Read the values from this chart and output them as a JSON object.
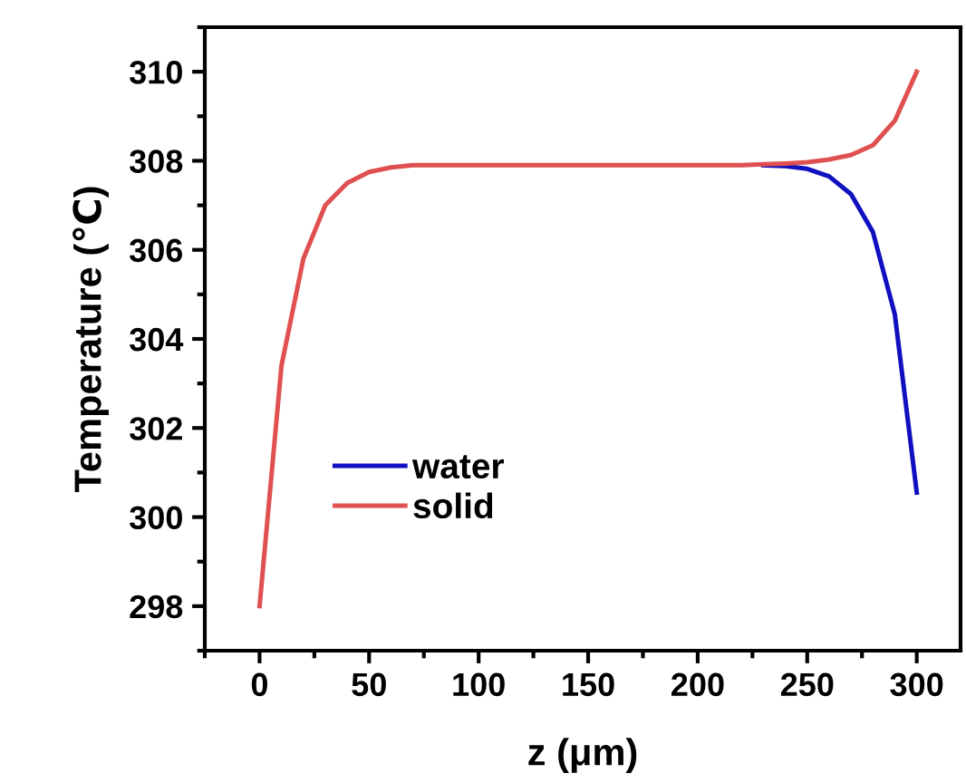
{
  "chart_data": {
    "type": "line",
    "xlabel": "z (μm)",
    "ylabel": "Temperature (℃)",
    "x": [
      0,
      10,
      20,
      30,
      40,
      50,
      60,
      70,
      80,
      90,
      100,
      110,
      120,
      130,
      140,
      150,
      160,
      170,
      180,
      190,
      200,
      210,
      220,
      230,
      240,
      250,
      260,
      270,
      280,
      290,
      300
    ],
    "series": [
      {
        "name": "water",
        "color": "#1010c0",
        "values": [
          null,
          null,
          null,
          null,
          null,
          null,
          null,
          null,
          null,
          null,
          null,
          null,
          null,
          null,
          null,
          null,
          null,
          null,
          null,
          null,
          null,
          null,
          null,
          307.9,
          307.88,
          307.82,
          307.65,
          307.25,
          306.4,
          304.55,
          300.55
        ]
      },
      {
        "name": "solid",
        "color": "#e05050",
        "values": [
          298.0,
          303.4,
          305.8,
          307.0,
          307.5,
          307.75,
          307.85,
          307.9,
          307.9,
          307.9,
          307.9,
          307.9,
          307.9,
          307.9,
          307.9,
          307.9,
          307.9,
          307.9,
          307.9,
          307.9,
          307.9,
          307.9,
          307.9,
          307.92,
          307.94,
          307.97,
          308.03,
          308.13,
          308.35,
          308.9,
          310.0
        ]
      }
    ],
    "xlim": [
      -25,
      320
    ],
    "xticks": [
      0,
      50,
      100,
      150,
      200,
      250,
      300
    ],
    "ylim": [
      297,
      311
    ],
    "yticks": [
      298,
      300,
      302,
      304,
      306,
      308,
      310
    ],
    "legend": "lower left",
    "grid": false,
    "marker": "none",
    "line_style": "solid"
  }
}
